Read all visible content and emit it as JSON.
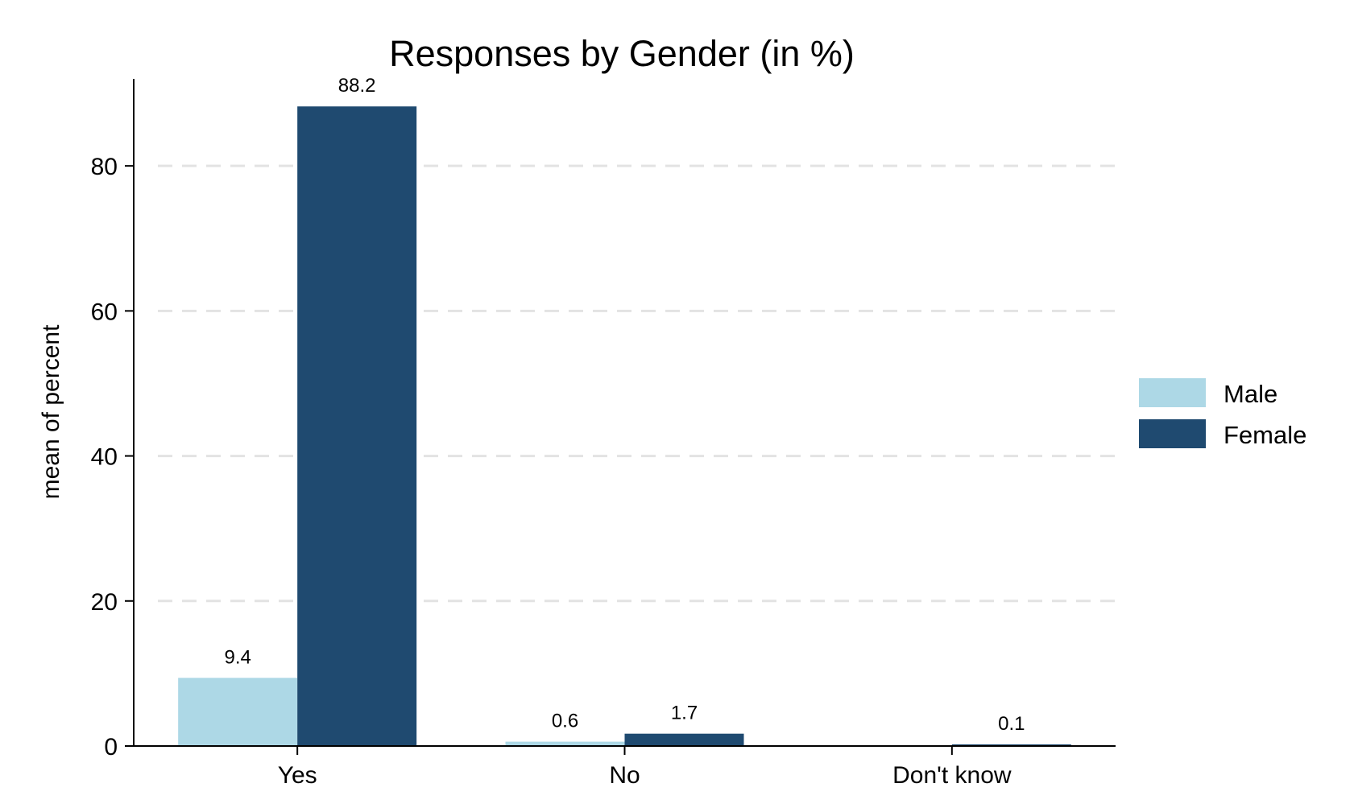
{
  "chart_data": {
    "type": "bar",
    "title": "Responses by Gender (in %)",
    "xlabel": "",
    "ylabel": "mean of percent",
    "categories": [
      "Yes",
      "No",
      "Don't know"
    ],
    "series": [
      {
        "name": "Male",
        "values": [
          9.4,
          0.6,
          0.0
        ],
        "labels": [
          "9.4",
          "0.6",
          ""
        ],
        "color": "#add8e6"
      },
      {
        "name": "Female",
        "values": [
          88.2,
          1.7,
          0.1
        ],
        "labels": [
          "88.2",
          "1.7",
          "0.1"
        ],
        "color": "#1f4a70"
      }
    ],
    "ylim": [
      0,
      92
    ],
    "yticks": [
      0,
      20,
      40,
      60,
      80
    ],
    "grid": true,
    "legend_position": "right"
  }
}
